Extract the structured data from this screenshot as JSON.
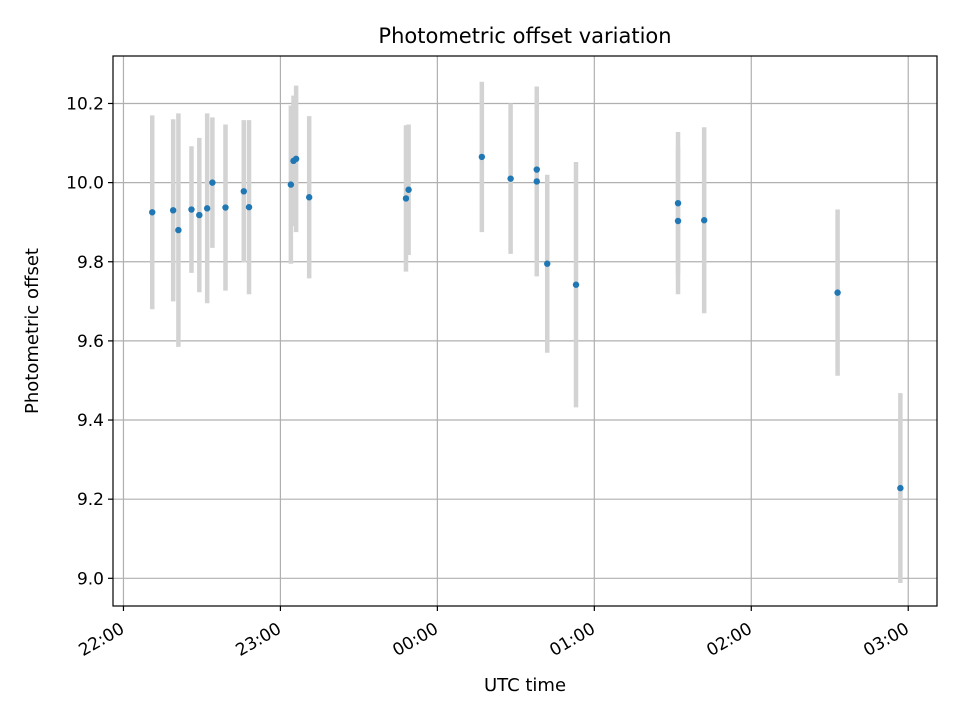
{
  "chart_data": {
    "type": "scatter",
    "title": "Photometric offset variation",
    "xlabel": "UTC time",
    "ylabel": "Photometric offset",
    "grid": true,
    "colors": {
      "point": "#1f77b4",
      "errorbar": "#d3d3d3",
      "grid": "#b0b0b0",
      "axes": "#000000"
    },
    "xlim": [
      "21:56",
      "03:11"
    ],
    "ylim": [
      8.93,
      10.32
    ],
    "x_ticks": [
      {
        "value": "22:00",
        "label": "22:00"
      },
      {
        "value": "23:00",
        "label": "23:00"
      },
      {
        "value": "00:00",
        "label": "00:00"
      },
      {
        "value": "01:00",
        "label": "01:00"
      },
      {
        "value": "02:00",
        "label": "02:00"
      },
      {
        "value": "03:00",
        "label": "03:00"
      }
    ],
    "y_ticks": [
      {
        "value": 9.0,
        "label": "9.0"
      },
      {
        "value": 9.2,
        "label": "9.2"
      },
      {
        "value": 9.4,
        "label": "9.4"
      },
      {
        "value": 9.6,
        "label": "9.6"
      },
      {
        "value": 9.8,
        "label": "9.8"
      },
      {
        "value": 10.0,
        "label": "10.0"
      },
      {
        "value": 10.2,
        "label": "10.2"
      }
    ],
    "points": [
      {
        "x": "22:11",
        "y": 9.925,
        "err": 0.245
      },
      {
        "x": "22:19",
        "y": 9.93,
        "err": 0.23
      },
      {
        "x": "22:21",
        "y": 9.88,
        "err": 0.295
      },
      {
        "x": "22:26",
        "y": 9.932,
        "err": 0.16
      },
      {
        "x": "22:29",
        "y": 9.918,
        "err": 0.195
      },
      {
        "x": "22:32",
        "y": 9.935,
        "err": 0.24
      },
      {
        "x": "22:34",
        "y": 10.0,
        "err": 0.165
      },
      {
        "x": "22:39",
        "y": 9.937,
        "err": 0.21
      },
      {
        "x": "22:46",
        "y": 9.978,
        "err": 0.18
      },
      {
        "x": "22:48",
        "y": 9.938,
        "err": 0.22
      },
      {
        "x": "23:04",
        "y": 9.995,
        "err": 0.2
      },
      {
        "x": "23:05",
        "y": 10.055,
        "err": 0.165
      },
      {
        "x": "23:06",
        "y": 10.06,
        "err": 0.185
      },
      {
        "x": "23:11",
        "y": 9.963,
        "err": 0.205
      },
      {
        "x": "23:48",
        "y": 9.96,
        "err": 0.185
      },
      {
        "x": "23:49",
        "y": 9.982,
        "err": 0.165
      },
      {
        "x": "00:17",
        "y": 10.065,
        "err": 0.19
      },
      {
        "x": "00:28",
        "y": 10.01,
        "err": 0.19
      },
      {
        "x": "00:38",
        "y": 10.033,
        "err": 0.195
      },
      {
        "x": "00:38",
        "y": 10.003,
        "err": 0.24
      },
      {
        "x": "00:42",
        "y": 9.795,
        "err": 0.225
      },
      {
        "x": "00:53",
        "y": 9.742,
        "err": 0.31
      },
      {
        "x": "01:32",
        "y": 9.948,
        "err": 0.18
      },
      {
        "x": "01:32",
        "y": 9.903,
        "err": 0.185
      },
      {
        "x": "01:42",
        "y": 9.905,
        "err": 0.235
      },
      {
        "x": "02:33",
        "y": 9.722,
        "err": 0.21
      },
      {
        "x": "02:57",
        "y": 9.228,
        "err": 0.24
      }
    ]
  }
}
